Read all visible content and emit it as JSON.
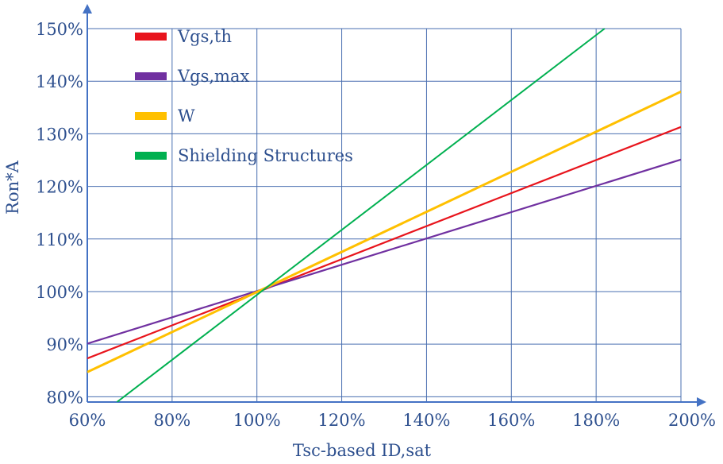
{
  "chart_data": {
    "type": "line",
    "title": "",
    "xlabel": "Tsc-based ID,sat",
    "ylabel": "Ron*A",
    "xlim": [
      0.6,
      2.0
    ],
    "ylim": [
      0.79,
      1.5
    ],
    "x_ticks": [
      0.6,
      0.8,
      1.0,
      1.2,
      1.4,
      1.6,
      1.8,
      2.0
    ],
    "x_tick_labels": [
      "60%",
      "80%",
      "100%",
      "120%",
      "140%",
      "160%",
      "180%",
      "200%"
    ],
    "y_ticks": [
      0.8,
      0.9,
      1.0,
      1.1,
      1.2,
      1.3,
      1.4,
      1.5
    ],
    "y_tick_labels": [
      "80%",
      "90%",
      "100%",
      "110%",
      "120%",
      "130%",
      "140%",
      "150%"
    ],
    "grid": true,
    "legend_position": "top-left",
    "series": [
      {
        "name": "Vgs,th",
        "color": "#e8141c",
        "x": [
          0.6,
          2.0
        ],
        "y": [
          0.873,
          1.313
        ]
      },
      {
        "name": "Vgs,max",
        "color": "#7030a0",
        "x": [
          0.6,
          2.0
        ],
        "y": [
          0.901,
          1.251
        ]
      },
      {
        "name": "W",
        "color": "#ffc000",
        "x": [
          0.6,
          2.0
        ],
        "y": [
          0.847,
          1.38
        ]
      },
      {
        "name": "Shielding Structures",
        "color": "#00b050",
        "x": [
          0.67,
          1.82
        ],
        "y": [
          0.79,
          1.5
        ]
      }
    ]
  }
}
